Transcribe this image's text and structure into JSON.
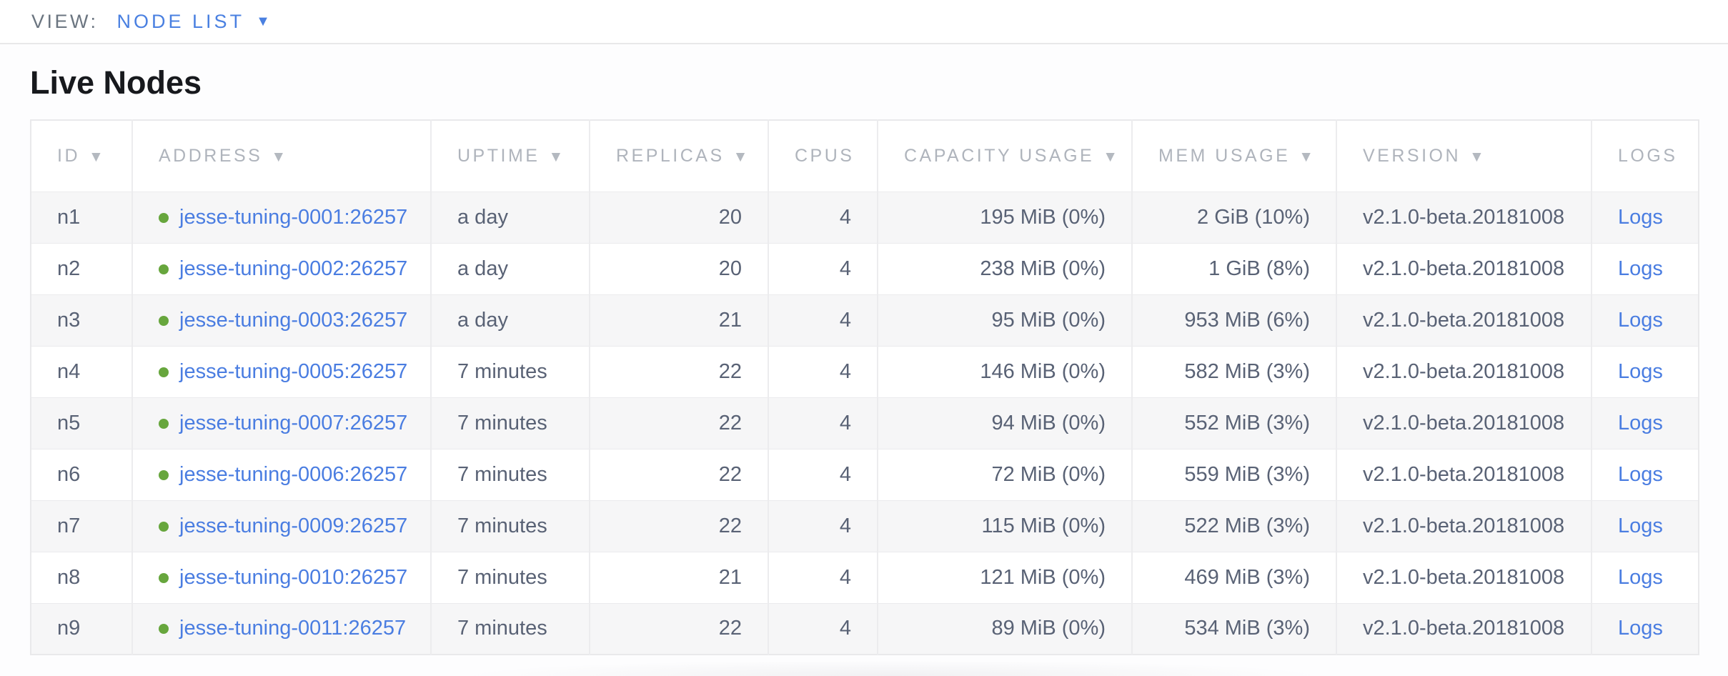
{
  "view_bar": {
    "label": "VIEW:",
    "selected": "NODE LIST",
    "caret_icon": "▼"
  },
  "page": {
    "title": "Live Nodes"
  },
  "colors": {
    "link_blue": "#4a7de1",
    "accent_blue": "#4a80e1",
    "status_green": "#67a63d",
    "header_gray": "#afb4bc",
    "cell_text": "#596275"
  },
  "table": {
    "sort_arrow_icon": "▼",
    "columns": [
      {
        "key": "id",
        "label": "ID",
        "sortable": true,
        "align": "left"
      },
      {
        "key": "address",
        "label": "ADDRESS",
        "sortable": true,
        "align": "left",
        "type": "status-link"
      },
      {
        "key": "uptime",
        "label": "UPTIME",
        "sortable": true,
        "align": "left"
      },
      {
        "key": "replicas",
        "label": "REPLICAS",
        "sortable": true,
        "align": "right"
      },
      {
        "key": "cpus",
        "label": "CPUS",
        "sortable": false,
        "align": "right"
      },
      {
        "key": "capacity_usage",
        "label": "CAPACITY USAGE",
        "sortable": true,
        "align": "right"
      },
      {
        "key": "mem_usage",
        "label": "MEM USAGE",
        "sortable": true,
        "align": "right"
      },
      {
        "key": "version",
        "label": "VERSION",
        "sortable": true,
        "align": "left"
      },
      {
        "key": "logs",
        "label": "LOGS",
        "sortable": false,
        "align": "left",
        "type": "link"
      }
    ],
    "rows": [
      {
        "id": "n1",
        "address": "jesse-tuning-0001:26257",
        "status": "live",
        "uptime": "a day",
        "replicas": "20",
        "cpus": "4",
        "capacity_usage": "195 MiB (0%)",
        "mem_usage": "2 GiB (10%)",
        "version": "v2.1.0-beta.20181008",
        "logs": "Logs"
      },
      {
        "id": "n2",
        "address": "jesse-tuning-0002:26257",
        "status": "live",
        "uptime": "a day",
        "replicas": "20",
        "cpus": "4",
        "capacity_usage": "238 MiB (0%)",
        "mem_usage": "1 GiB (8%)",
        "version": "v2.1.0-beta.20181008",
        "logs": "Logs"
      },
      {
        "id": "n3",
        "address": "jesse-tuning-0003:26257",
        "status": "live",
        "uptime": "a day",
        "replicas": "21",
        "cpus": "4",
        "capacity_usage": "95 MiB (0%)",
        "mem_usage": "953 MiB (6%)",
        "version": "v2.1.0-beta.20181008",
        "logs": "Logs"
      },
      {
        "id": "n4",
        "address": "jesse-tuning-0005:26257",
        "status": "live",
        "uptime": "7 minutes",
        "replicas": "22",
        "cpus": "4",
        "capacity_usage": "146 MiB (0%)",
        "mem_usage": "582 MiB (3%)",
        "version": "v2.1.0-beta.20181008",
        "logs": "Logs"
      },
      {
        "id": "n5",
        "address": "jesse-tuning-0007:26257",
        "status": "live",
        "uptime": "7 minutes",
        "replicas": "22",
        "cpus": "4",
        "capacity_usage": "94 MiB (0%)",
        "mem_usage": "552 MiB (3%)",
        "version": "v2.1.0-beta.20181008",
        "logs": "Logs"
      },
      {
        "id": "n6",
        "address": "jesse-tuning-0006:26257",
        "status": "live",
        "uptime": "7 minutes",
        "replicas": "22",
        "cpus": "4",
        "capacity_usage": "72 MiB (0%)",
        "mem_usage": "559 MiB (3%)",
        "version": "v2.1.0-beta.20181008",
        "logs": "Logs"
      },
      {
        "id": "n7",
        "address": "jesse-tuning-0009:26257",
        "status": "live",
        "uptime": "7 minutes",
        "replicas": "22",
        "cpus": "4",
        "capacity_usage": "115 MiB (0%)",
        "mem_usage": "522 MiB (3%)",
        "version": "v2.1.0-beta.20181008",
        "logs": "Logs"
      },
      {
        "id": "n8",
        "address": "jesse-tuning-0010:26257",
        "status": "live",
        "uptime": "7 minutes",
        "replicas": "21",
        "cpus": "4",
        "capacity_usage": "121 MiB (0%)",
        "mem_usage": "469 MiB (3%)",
        "version": "v2.1.0-beta.20181008",
        "logs": "Logs"
      },
      {
        "id": "n9",
        "address": "jesse-tuning-0011:26257",
        "status": "live",
        "uptime": "7 minutes",
        "replicas": "22",
        "cpus": "4",
        "capacity_usage": "89 MiB (0%)",
        "mem_usage": "534 MiB (3%)",
        "version": "v2.1.0-beta.20181008",
        "logs": "Logs"
      }
    ]
  }
}
